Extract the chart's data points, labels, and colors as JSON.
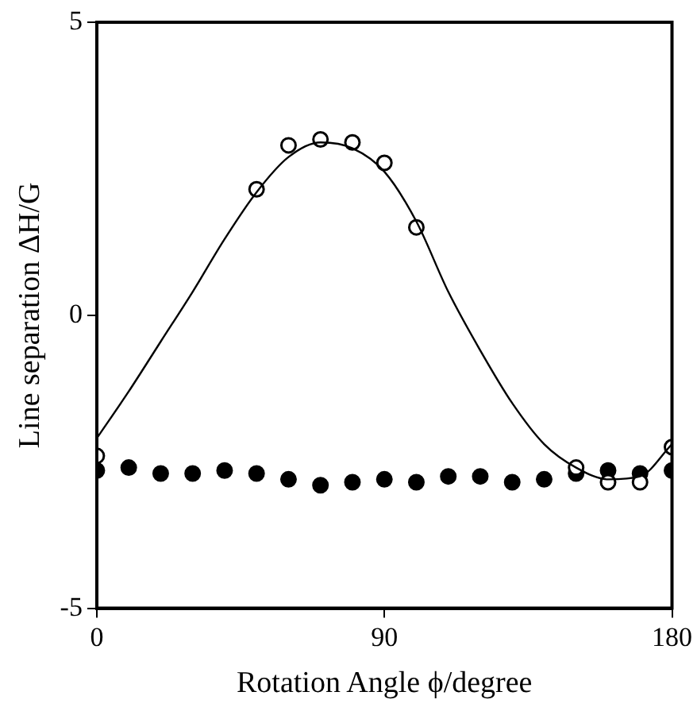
{
  "chart_data": {
    "type": "scatter",
    "xlabel": "Rotation Angle ϕ/degree",
    "ylabel": "Line separation ΔH/G",
    "xlim": [
      0,
      180
    ],
    "xticks": [
      0,
      90,
      180
    ],
    "ylim": [
      -5,
      5
    ],
    "yticks": [
      -5,
      0,
      5
    ],
    "grid": false,
    "legend": false,
    "marker": "circle",
    "series": [
      {
        "type": "line",
        "marker": "none",
        "color": "#000000",
        "x": [
          0,
          10,
          20,
          30,
          40,
          50,
          60,
          70,
          80,
          90,
          100,
          110,
          120,
          130,
          140,
          150,
          160,
          170,
          180
        ],
        "values": [
          -2.1,
          -1.3,
          -0.45,
          0.4,
          1.3,
          2.1,
          2.7,
          2.95,
          2.85,
          2.45,
          1.6,
          0.4,
          -0.6,
          -1.5,
          -2.2,
          -2.6,
          -2.8,
          -2.75,
          -2.2
        ]
      },
      {
        "color": "#000000",
        "x": [
          0,
          50,
          60,
          70,
          80,
          90,
          100,
          150,
          160,
          170,
          180
        ],
        "values": [
          -2.4,
          2.15,
          2.9,
          3.0,
          2.95,
          2.6,
          1.5,
          -2.6,
          -2.85,
          -2.85,
          -2.25
        ]
      },
      {
        "color": "#000000",
        "x": [
          0,
          10,
          20,
          30,
          40,
          50,
          60,
          70,
          80,
          90,
          100,
          110,
          120,
          130,
          140,
          150,
          160,
          170,
          180
        ],
        "values": [
          -2.65,
          -2.6,
          -2.7,
          -2.7,
          -2.65,
          -2.7,
          -2.8,
          -2.9,
          -2.85,
          -2.8,
          -2.85,
          -2.75,
          -2.75,
          -2.85,
          -2.8,
          -2.7,
          -2.65,
          -2.7,
          -2.65
        ]
      }
    ]
  }
}
